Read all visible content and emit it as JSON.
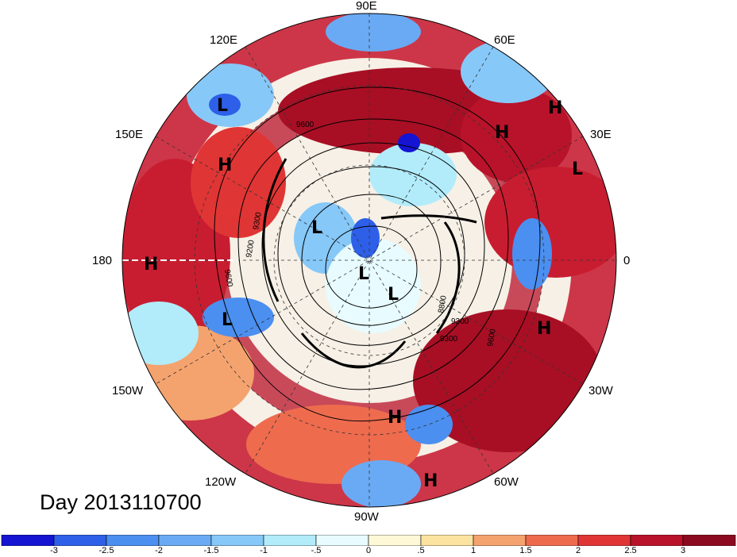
{
  "map": {
    "projection": "north-polar-stereographic",
    "longitude_labels": [
      "90E",
      "60E",
      "30E",
      "0",
      "30W",
      "60W",
      "90W",
      "120W",
      "150W",
      "180",
      "150E",
      "120E"
    ],
    "contour_labels": [
      "9600",
      "9300",
      "9200",
      "9300",
      "9600",
      "8800",
      "9300",
      "9600"
    ],
    "pressure_centers": [
      {
        "type": "L",
        "name": "low-120e"
      },
      {
        "type": "H",
        "name": "high-150e"
      },
      {
        "type": "H",
        "name": "high-180"
      },
      {
        "type": "L",
        "name": "low-160w"
      },
      {
        "type": "L",
        "name": "low-arctic-1"
      },
      {
        "type": "L",
        "name": "low-pole"
      },
      {
        "type": "L",
        "name": "low-arctic-2"
      },
      {
        "type": "H",
        "name": "high-atlantic"
      },
      {
        "type": "H",
        "name": "high-gulf"
      },
      {
        "type": "H",
        "name": "high-caribbean"
      },
      {
        "type": "H",
        "name": "high-europe-1"
      },
      {
        "type": "H",
        "name": "high-europe-2"
      },
      {
        "type": "L",
        "name": "low-30e"
      }
    ]
  },
  "day_label": "Day 2013110700",
  "colorbar": {
    "tick_labels": [
      "-3",
      "-2.5",
      "-2",
      "-1.5",
      "-1",
      "-.5",
      "0",
      ".5",
      "1",
      "1.5",
      "2",
      "2.5",
      "3"
    ],
    "colors": [
      "#1414d2",
      "#2e5fe8",
      "#4b8ff0",
      "#6aaaf4",
      "#86c8f8",
      "#b2ecfb",
      "#e8fbff",
      "#fff8d6",
      "#fde3a0",
      "#f5a36e",
      "#ee6b4e",
      "#e03535",
      "#b8132a",
      "#8c0a1f"
    ]
  }
}
